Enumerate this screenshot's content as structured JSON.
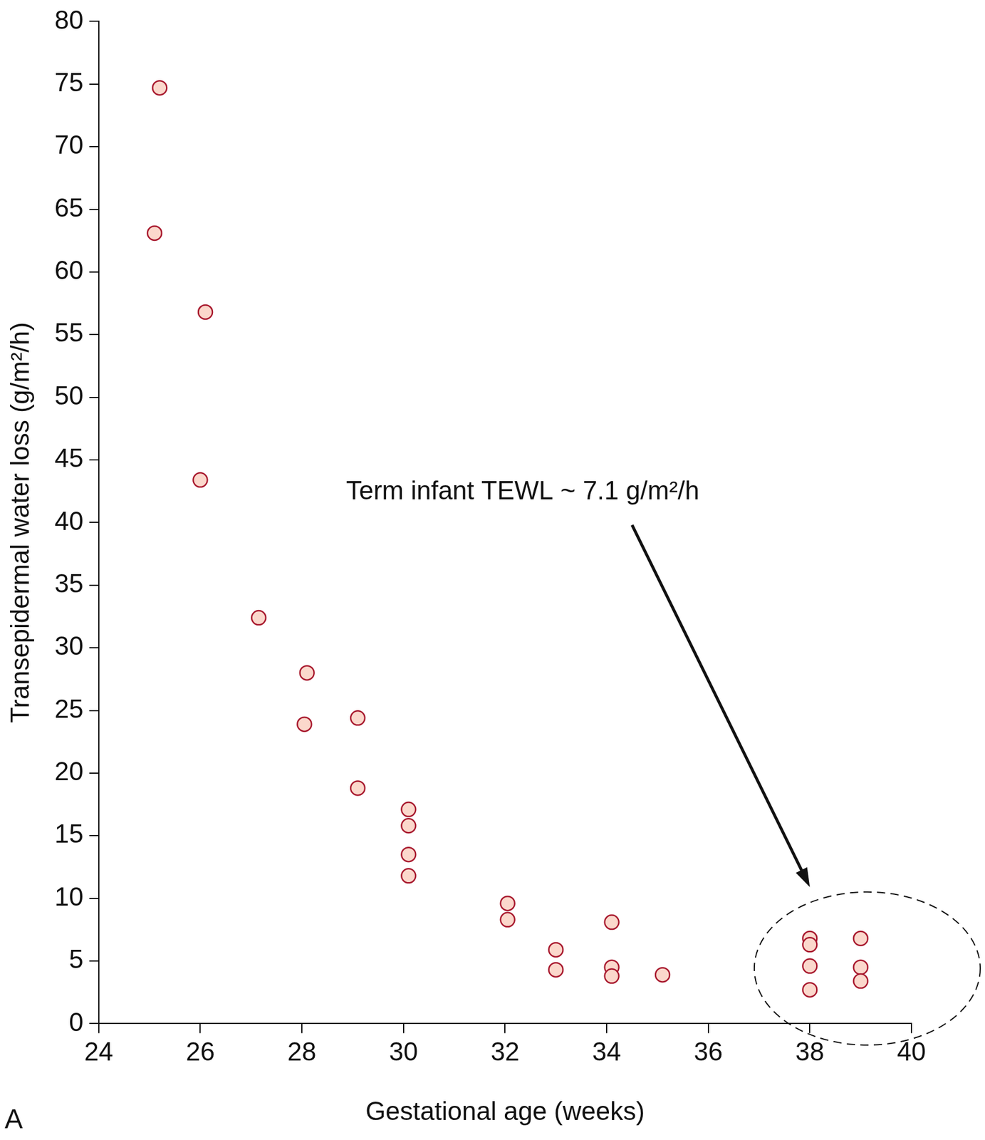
{
  "chart_data": {
    "type": "scatter",
    "x_label": "Gestational age (weeks)",
    "y_label": "Transepidermal water loss (g/m²/h)",
    "annotation": "Term infant TEWL ~ 7.1 g/m²/h",
    "panel_label": "A",
    "x": [
      25.2,
      25.1,
      26.1,
      26.0,
      27.15,
      28.1,
      28.05,
      29.1,
      29.1,
      30.1,
      30.1,
      30.1,
      30.1,
      32.05,
      32.05,
      33.0,
      33.0,
      34.1,
      34.1,
      34.1,
      35.1,
      38.0,
      38.0,
      38.0,
      38.0,
      39.0,
      39.0,
      39.0
    ],
    "values": [
      74.7,
      63.1,
      56.8,
      43.4,
      32.4,
      28.0,
      23.9,
      24.4,
      18.8,
      17.1,
      15.8,
      13.5,
      11.8,
      9.6,
      8.3,
      5.9,
      4.3,
      8.1,
      4.5,
      3.8,
      3.9,
      6.8,
      6.3,
      4.6,
      2.7,
      6.8,
      4.5,
      3.4
    ],
    "color": "#a8192e",
    "marker": "circle",
    "xlim": [
      24,
      40
    ],
    "xticks": [
      24,
      26,
      28,
      30,
      32,
      34,
      36,
      38,
      40
    ],
    "ylim": [
      0,
      80
    ],
    "yticks": [
      0,
      5,
      10,
      15,
      20,
      25,
      30,
      35,
      40,
      45,
      50,
      55,
      60,
      65,
      70,
      75,
      80
    ],
    "grid": false
  }
}
